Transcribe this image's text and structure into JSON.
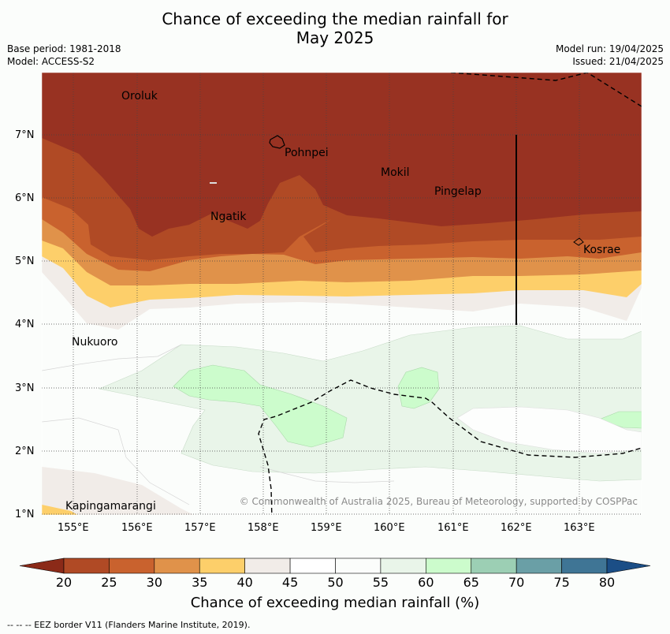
{
  "title_line1": "Chance of exceeding the median rainfall for",
  "title_line2": "May 2025",
  "base_period": "Base period: 1981-2018",
  "model": "Model: ACCESS-S2",
  "model_run": "Model run: 19/04/2025",
  "issued": "Issued: 21/04/2025",
  "copyright": "© Commonwealth of Australia 2025, Bureau of Meteorology, supported by COSPPac",
  "places": [
    "Oroluk",
    "Pohnpei",
    "Mokil",
    "Pingelap",
    "Ngatik",
    "Kosrae",
    "Nukuoro",
    "Kapingamarangi"
  ],
  "lat_labels": [
    "7°N",
    "6°N",
    "5°N",
    "4°N",
    "3°N",
    "2°N",
    "1°N"
  ],
  "lon_labels": [
    "155°E",
    "156°E",
    "157°E",
    "158°E",
    "159°E",
    "160°E",
    "161°E",
    "162°E",
    "163°E"
  ],
  "colorbar": {
    "ticks": [
      "20",
      "25",
      "30",
      "35",
      "40",
      "45",
      "50",
      "55",
      "60",
      "65",
      "70",
      "75",
      "80"
    ],
    "colors": [
      "#8b2a18",
      "#b04a25",
      "#c9622e",
      "#e0924a",
      "#fdcf6a",
      "#f1ece8",
      "#ffffff",
      "#fbfdfb",
      "#e9f5e9",
      "#ccfccc",
      "#9ccfb4",
      "#6a9fa6",
      "#3f7595",
      "#1b4e86"
    ],
    "label": "Chance of exceeding median rainfall (%)"
  },
  "footer": "-- -- -- EEZ border V11 (Flanders Marine Institute, 2019)."
}
